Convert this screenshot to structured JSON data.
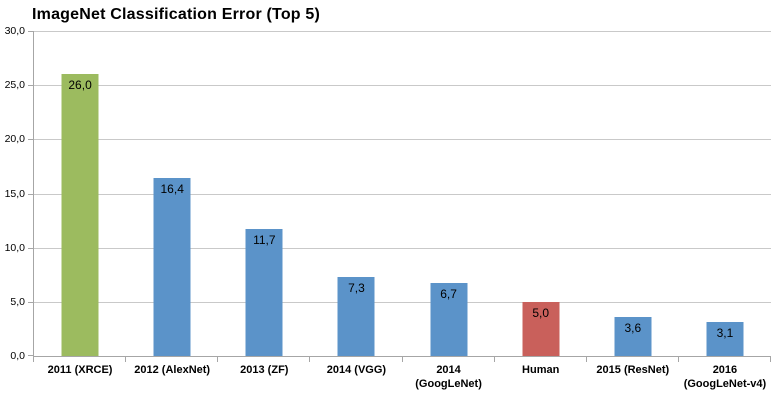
{
  "chart_data": {
    "type": "bar",
    "title": "ImageNet Classification Error (Top 5)",
    "xlabel": "",
    "ylabel": "",
    "ylim": [
      0,
      30
    ],
    "grid": true,
    "legend": "none",
    "ytick_values": [
      0,
      5,
      10,
      15,
      20,
      25,
      30
    ],
    "ytick_labels": [
      "0,0",
      "5,0",
      "10,0",
      "15,0",
      "20,0",
      "25,0",
      "30,0"
    ],
    "categories": [
      "2011 (XRCE)",
      "2012 (AlexNet)",
      "2013 (ZF)",
      "2014 (VGG)",
      "2014\n(GoogLeNet)",
      "Human",
      "2015 (ResNet)",
      "2016\n(GoogLeNet-v4)"
    ],
    "values": [
      26.0,
      16.4,
      11.7,
      7.3,
      6.7,
      5.0,
      3.6,
      3.1
    ],
    "value_labels": [
      "26,0",
      "16,4",
      "11,7",
      "7,3",
      "6,7",
      "5,0",
      "3,6",
      "3,1"
    ],
    "bar_colors": [
      "#9CBB5F",
      "#5B93C9",
      "#5B93C9",
      "#5B93C9",
      "#5B93C9",
      "#C9605B",
      "#5B93C9",
      "#5B93C9"
    ],
    "colors": {
      "green_bar": "#9CBB5F",
      "blue_bar": "#5B93C9",
      "red_bar": "#C9605B",
      "gridline": "#C9C9C9",
      "axis": "#A6A6A6",
      "text": "#000000"
    }
  }
}
